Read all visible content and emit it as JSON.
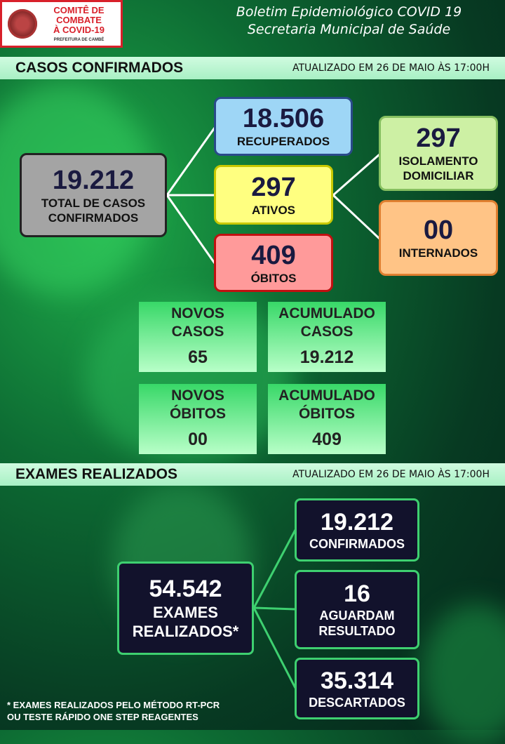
{
  "header": {
    "logo": {
      "line1": "COMITÊ DE COMBATE",
      "line2": "À COVID-19",
      "line3": "PREFEITURA DE CAMBÉ"
    },
    "title_line1": "Boletim Epidemiológico COVID 19",
    "title_line2": "Secretaria Municipal de Saúde"
  },
  "cases": {
    "heading": "CASOS CONFIRMADOS",
    "updated": "ATUALIZADO EM 26 DE MAIO ÀS 17:00H",
    "total": {
      "value": "19.212",
      "label": "TOTAL DE CASOS CONFIRMADOS"
    },
    "recovered": {
      "value": "18.506",
      "label": "RECUPERADOS"
    },
    "active": {
      "value": "297",
      "label": "ATIVOS"
    },
    "deaths": {
      "value": "409",
      "label": "ÓBITOS"
    },
    "home_isolation": {
      "value": "297",
      "label1": "ISOLAMENTO",
      "label2": "DOMICILIAR"
    },
    "hospitalized": {
      "value": "00",
      "label": "INTERNADOS"
    },
    "new_cases": {
      "label1": "NOVOS",
      "label2": "CASOS",
      "value": "65"
    },
    "cumulative_cases": {
      "label1": "ACUMULADO",
      "label2": "CASOS",
      "value": "19.212"
    },
    "new_deaths": {
      "label1": "NOVOS",
      "label2": "ÓBITOS",
      "value": "00"
    },
    "cumulative_deaths": {
      "label1": "ACUMULADO",
      "label2": "ÓBITOS",
      "value": "409"
    }
  },
  "exams": {
    "heading": "EXAMES REALIZADOS",
    "updated": "ATUALIZADO EM 26 DE MAIO ÀS 17:00H",
    "total": {
      "value": "54.542",
      "label1": "EXAMES",
      "label2": "REALIZADOS*"
    },
    "confirmed": {
      "value": "19.212",
      "label": "CONFIRMADOS"
    },
    "pending": {
      "value": "16",
      "label1": "AGUARDAM",
      "label2": "RESULTADO"
    },
    "discarded": {
      "value": "35.314",
      "label": "DESCARTADOS"
    },
    "footnote1": "* EXAMES REALIZADOS PELO MÉTODO RT-PCR",
    "footnote2": "OU TESTE RÁPIDO ONE STEP REAGENTES"
  },
  "colors": {
    "recovered": "#9ed6f6",
    "active": "#ffff80",
    "deaths": "#ff9a9a",
    "isolation": "#cdf0a4",
    "hospitalized": "#ffc486",
    "total": "#a4a4a4",
    "exam_box": "#12122c",
    "exam_border": "#3ed070"
  }
}
